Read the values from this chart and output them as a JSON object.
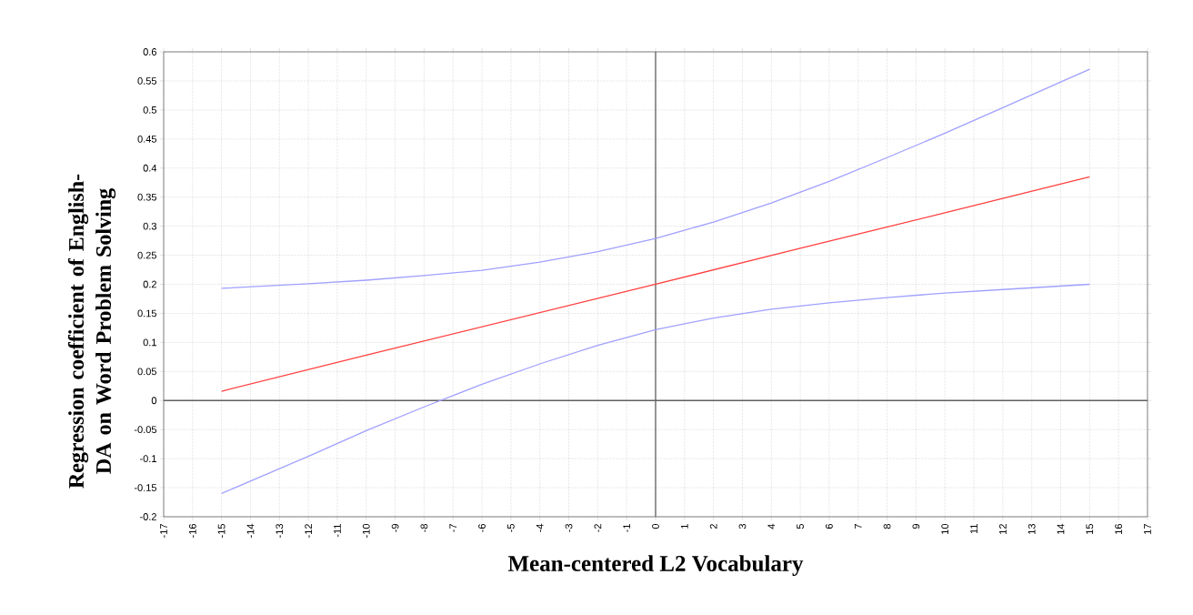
{
  "chart_data": {
    "type": "line",
    "xlabel": "Mean-centered L2 Vocabulary",
    "ylabel": "Regression coefficient of English-DA on Word Problem Solving",
    "series": [
      {
        "color": "#ff4040",
        "x": [
          -15,
          -10,
          -5,
          0,
          5,
          10,
          15
        ],
        "values": [
          0.016,
          0.078,
          0.139,
          0.2,
          0.262,
          0.323,
          0.385
        ]
      },
      {
        "color": "#a0a0ff",
        "x": [
          -15,
          -12,
          -10,
          -8,
          -6,
          -4,
          -2,
          0,
          2,
          4,
          6,
          8,
          10,
          12,
          14,
          15
        ],
        "values": [
          0.193,
          0.201,
          0.207,
          0.215,
          0.224,
          0.238,
          0.256,
          0.279,
          0.307,
          0.34,
          0.377,
          0.418,
          0.46,
          0.504,
          0.548,
          0.57
        ]
      },
      {
        "color": "#a0a0ff",
        "x": [
          -15,
          -12,
          -10,
          -8,
          -6,
          -4,
          -2,
          0,
          2,
          4,
          6,
          8,
          10,
          12,
          14,
          15
        ],
        "values": [
          -0.16,
          -0.096,
          -0.052,
          -0.011,
          0.028,
          0.063,
          0.095,
          0.122,
          0.142,
          0.157,
          0.168,
          0.177,
          0.185,
          0.191,
          0.197,
          0.2
        ]
      }
    ],
    "xlim": [
      -17,
      17
    ],
    "xticks": [
      -17,
      -16,
      -15,
      -14,
      -13,
      -12,
      -11,
      -10,
      -9,
      -8,
      -7,
      -6,
      -5,
      -4,
      -3,
      -2,
      -1,
      0,
      1,
      2,
      3,
      4,
      5,
      6,
      7,
      8,
      9,
      10,
      11,
      12,
      13,
      14,
      15,
      16,
      17
    ],
    "ylim": [
      -0.2,
      0.6
    ],
    "yticks": [
      -0.2,
      -0.15,
      -0.1,
      -0.05,
      0,
      0.05,
      0.1,
      0.15,
      0.2,
      0.25,
      0.3,
      0.35,
      0.4,
      0.45,
      0.5,
      0.55,
      0.6
    ],
    "grid": true,
    "marker": "none",
    "line_style": "solid"
  }
}
